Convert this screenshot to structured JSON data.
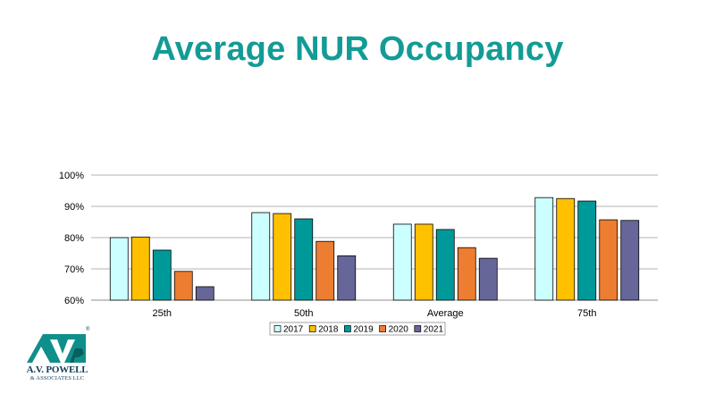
{
  "slide": {
    "title": "Average NUR Occupancy"
  },
  "logo": {
    "name": "A.V. POWELL",
    "subtitle": "& ASSOCIATES LLC",
    "mark": "AVP",
    "registered": "®"
  },
  "colors": {
    "title": "#139b96",
    "grid": "#b3b3b3",
    "axis": "#8c8c8c"
  },
  "chart_data": {
    "type": "bar",
    "title": "",
    "xlabel": "",
    "ylabel": "",
    "categories": [
      "25th",
      "50th",
      "Average",
      "75th"
    ],
    "ylim": [
      0.6,
      1.0
    ],
    "yticks": [
      "60%",
      "70%",
      "80%",
      "90%",
      "100%"
    ],
    "grid": true,
    "legend_position": "bottom",
    "series": [
      {
        "name": "2017",
        "color": "#ccffff",
        "values": [
          0.8,
          0.88,
          0.843,
          0.928
        ]
      },
      {
        "name": "2018",
        "color": "#ffc000",
        "values": [
          0.802,
          0.877,
          0.843,
          0.925
        ]
      },
      {
        "name": "2019",
        "color": "#009999",
        "values": [
          0.76,
          0.86,
          0.826,
          0.917
        ]
      },
      {
        "name": "2020",
        "color": "#ed7d31",
        "values": [
          0.692,
          0.788,
          0.768,
          0.857
        ]
      },
      {
        "name": "2021",
        "color": "#666699",
        "values": [
          0.643,
          0.742,
          0.734,
          0.855
        ]
      }
    ]
  }
}
